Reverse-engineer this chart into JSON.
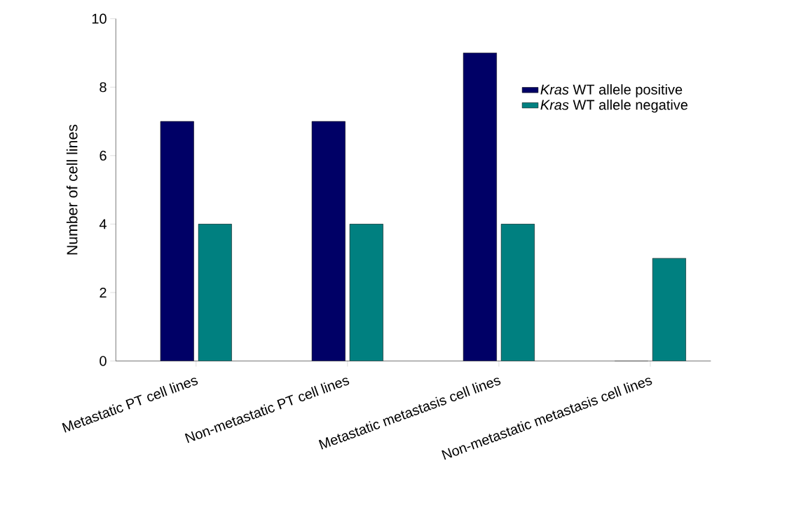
{
  "chart_data": {
    "type": "bar",
    "ylabel": "Number of cell lines",
    "categories": [
      "Metastatic PT cell lines",
      "Non-metastatic PT cell lines",
      "Metastatic metastasis cell lines",
      "Non-metastatic metastasis cell lines"
    ],
    "series": [
      {
        "name": "*Kras* WT allele positive",
        "color": "#000066",
        "values": [
          7,
          7,
          9,
          0
        ]
      },
      {
        "name": "*Kras* WT allele negative",
        "color": "#008080",
        "values": [
          4,
          4,
          4,
          3
        ]
      }
    ],
    "ylim": [
      0,
      10
    ],
    "yticks": [
      0,
      2,
      4,
      6,
      8,
      10
    ],
    "grid": false,
    "legend": "top right"
  }
}
